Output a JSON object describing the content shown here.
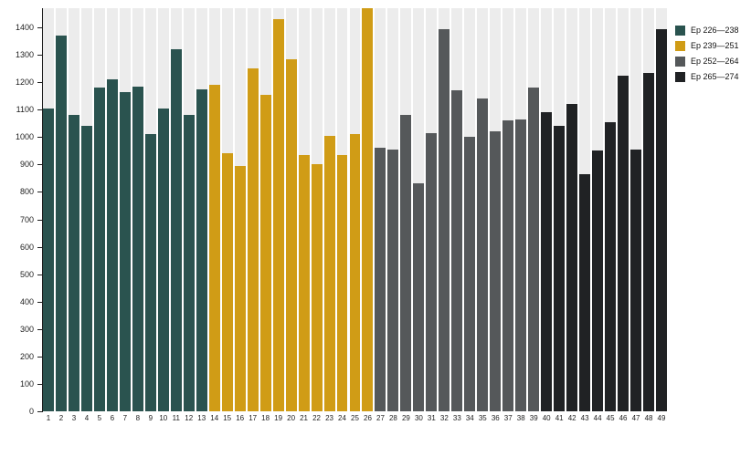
{
  "chart_data": {
    "type": "bar",
    "title": "",
    "xlabel": "",
    "ylabel": "",
    "grid": false,
    "legend_position": "right",
    "ylim": [
      0,
      1470
    ],
    "yticks": [
      0,
      100,
      200,
      300,
      400,
      500,
      600,
      700,
      800,
      900,
      1000,
      1100,
      1200,
      1300,
      1400
    ],
    "categories": [
      1,
      2,
      3,
      4,
      5,
      6,
      7,
      8,
      9,
      10,
      11,
      12,
      13,
      14,
      15,
      16,
      17,
      18,
      19,
      20,
      21,
      22,
      23,
      24,
      25,
      26,
      27,
      28,
      29,
      30,
      31,
      32,
      33,
      34,
      35,
      36,
      37,
      38,
      39,
      40,
      41,
      42,
      43,
      44,
      45,
      46,
      47,
      48,
      49
    ],
    "values": [
      1105,
      1370,
      1080,
      1040,
      1180,
      1210,
      1165,
      1185,
      1010,
      1105,
      1320,
      1080,
      1175,
      1190,
      940,
      895,
      1250,
      1155,
      1430,
      1285,
      935,
      900,
      1005,
      935,
      1010,
      1470,
      960,
      955,
      1080,
      830,
      1015,
      1395,
      1170,
      1000,
      1140,
      1020,
      1060,
      1065,
      1180,
      1090,
      1040,
      1120,
      865,
      950,
      1055,
      1225,
      955,
      1235,
      1395
    ],
    "groups": [
      {
        "label": "Ep 226—238",
        "color": "#2a534f",
        "from": 1,
        "to": 13
      },
      {
        "label": "Ep 239—251",
        "color": "#d09c16",
        "from": 14,
        "to": 26
      },
      {
        "label": "Ep 252—264",
        "color": "#55585a",
        "from": 27,
        "to": 39
      },
      {
        "label": "Ep 265—274",
        "color": "#202224",
        "from": 40,
        "to": 49
      }
    ],
    "style": {
      "track_stripe_color": "#ececec",
      "axis_color": "#1d1d1d",
      "tick_label_color": "#1d1d1d",
      "legend_text_color": "#111111",
      "background_color": "#ffffff"
    }
  }
}
